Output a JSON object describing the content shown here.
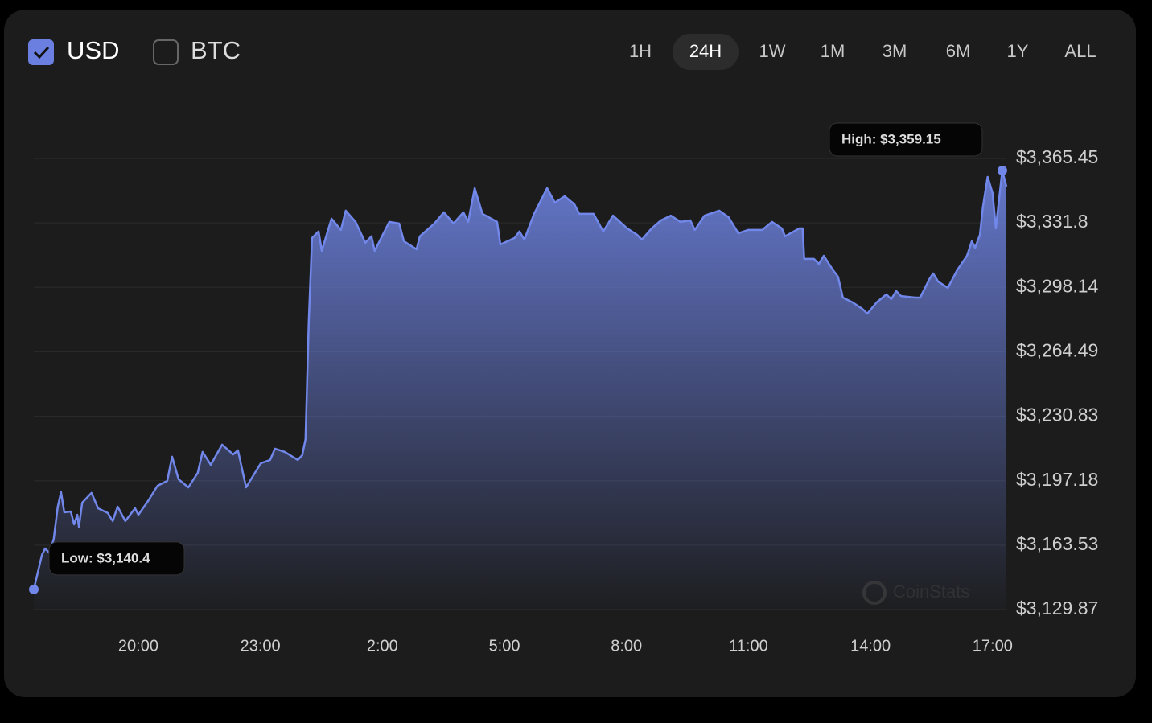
{
  "controls": {
    "currencies": [
      {
        "label": "USD",
        "checked": true
      },
      {
        "label": "BTC",
        "checked": false
      }
    ],
    "ranges": [
      "1H",
      "24H",
      "1W",
      "1M",
      "3M",
      "6M",
      "1Y",
      "ALL"
    ],
    "active_range": "24H",
    "watermark": "CoinStats"
  },
  "chart_data": {
    "type": "area",
    "color": "#7187ea",
    "grid": true,
    "annotations": {
      "low": "Low: $3,140.4",
      "high": "High: $3,359.15"
    },
    "x": [
      17.43,
      17.63,
      17.71,
      17.82,
      17.92,
      18.02,
      18.1,
      18.18,
      18.34,
      18.42,
      18.5,
      18.54,
      18.62,
      18.85,
      19.01,
      19.25,
      19.37,
      19.49,
      19.68,
      19.92,
      20.0,
      20.24,
      20.47,
      20.71,
      20.83,
      20.99,
      21.23,
      21.46,
      21.58,
      21.78,
      22.06,
      22.33,
      22.45,
      22.65,
      23.01,
      23.24,
      23.36,
      23.6,
      23.92,
      24.03,
      24.11,
      24.19,
      24.27,
      24.43,
      24.51,
      24.75,
      24.98,
      25.1,
      25.34,
      25.58,
      25.73,
      25.81,
      26.17,
      26.41,
      26.53,
      26.84,
      26.92,
      27.28,
      27.51,
      27.75,
      27.99,
      28.11,
      28.27,
      28.46,
      28.82,
      28.9,
      29.25,
      29.37,
      29.49,
      29.73,
      30.05,
      30.24,
      30.48,
      30.72,
      30.84,
      31.19,
      31.43,
      31.67,
      32.02,
      32.26,
      32.38,
      32.62,
      32.85,
      33.09,
      33.33,
      33.57,
      33.68,
      33.92,
      34.28,
      34.51,
      34.75,
      34.99,
      35.34,
      35.58,
      35.82,
      35.9,
      36.25,
      36.33,
      36.37,
      36.61,
      36.73,
      36.85,
      37.08,
      37.2,
      37.32,
      37.56,
      37.8,
      37.92,
      38.15,
      38.39,
      38.51,
      38.63,
      38.75,
      39.1,
      39.22,
      39.46,
      39.54,
      39.66,
      39.9,
      40.13,
      40.37,
      40.49,
      40.57,
      40.69,
      40.76,
      40.88,
      41.0,
      41.08,
      41.24,
      41.34
    ],
    "values": [
      3140.4,
      3158.4,
      3161.8,
      3159.3,
      3166.8,
      3183.6,
      3191.2,
      3180.7,
      3181.1,
      3174.4,
      3179.4,
      3173.1,
      3185.7,
      3190.8,
      3182.8,
      3180.3,
      3176.1,
      3183.6,
      3176.1,
      3182.8,
      3179.4,
      3186.6,
      3194.5,
      3197.1,
      3209.7,
      3197.9,
      3193.7,
      3201.3,
      3212.2,
      3205.5,
      3216.0,
      3210.9,
      3213.0,
      3193.7,
      3206.3,
      3208.0,
      3213.9,
      3212.2,
      3208.0,
      3210.5,
      3218.9,
      3280.2,
      3323.9,
      3327.3,
      3317.2,
      3334.0,
      3328.1,
      3338.2,
      3332.3,
      3321.4,
      3324.8,
      3317.2,
      3332.3,
      3331.5,
      3322.2,
      3318.0,
      3324.8,
      3331.5,
      3337.3,
      3331.5,
      3337.3,
      3332.3,
      3349.9,
      3336.5,
      3332.3,
      3320.5,
      3323.9,
      3327.3,
      3323.1,
      3336.5,
      3349.9,
      3342.4,
      3345.7,
      3341.5,
      3336.5,
      3336.5,
      3327.3,
      3335.6,
      3328.9,
      3325.6,
      3323.1,
      3328.9,
      3333.1,
      3335.6,
      3332.3,
      3333.1,
      3328.1,
      3335.6,
      3338.2,
      3334.8,
      3326.4,
      3328.1,
      3328.1,
      3332.3,
      3328.9,
      3324.8,
      3328.9,
      3328.9,
      3313.0,
      3313.0,
      3310.4,
      3314.6,
      3307.1,
      3303.7,
      3292.8,
      3290.3,
      3286.9,
      3284.4,
      3290.3,
      3294.5,
      3292.0,
      3296.2,
      3293.6,
      3292.8,
      3292.8,
      3302.9,
      3305.4,
      3301.2,
      3297.9,
      3307.1,
      3314.6,
      3322.2,
      3318.8,
      3325.6,
      3339.8,
      3355.8,
      3347.4,
      3328.9,
      3359.15,
      3350.8
    ],
    "xlim": [
      17.43,
      41.34
    ],
    "xticks": [
      {
        "value": 20,
        "label": "20:00"
      },
      {
        "value": 23,
        "label": "23:00"
      },
      {
        "value": 26,
        "label": "2:00"
      },
      {
        "value": 29,
        "label": "5:00"
      },
      {
        "value": 32,
        "label": "8:00"
      },
      {
        "value": 35,
        "label": "11:00"
      },
      {
        "value": 38,
        "label": "14:00"
      },
      {
        "value": 41,
        "label": "17:00"
      }
    ],
    "ylim": [
      3129.87,
      3365.45
    ],
    "yticks": [
      {
        "value": 3129.87,
        "label": "$3,129.87"
      },
      {
        "value": 3163.53,
        "label": "$3,163.53"
      },
      {
        "value": 3197.18,
        "label": "$3,197.18"
      },
      {
        "value": 3230.83,
        "label": "$3,230.83"
      },
      {
        "value": 3264.49,
        "label": "$3,264.49"
      },
      {
        "value": 3298.14,
        "label": "$3,298.14"
      },
      {
        "value": 3331.8,
        "label": "$3,331.8"
      },
      {
        "value": 3365.45,
        "label": "$3,365.45"
      }
    ]
  }
}
